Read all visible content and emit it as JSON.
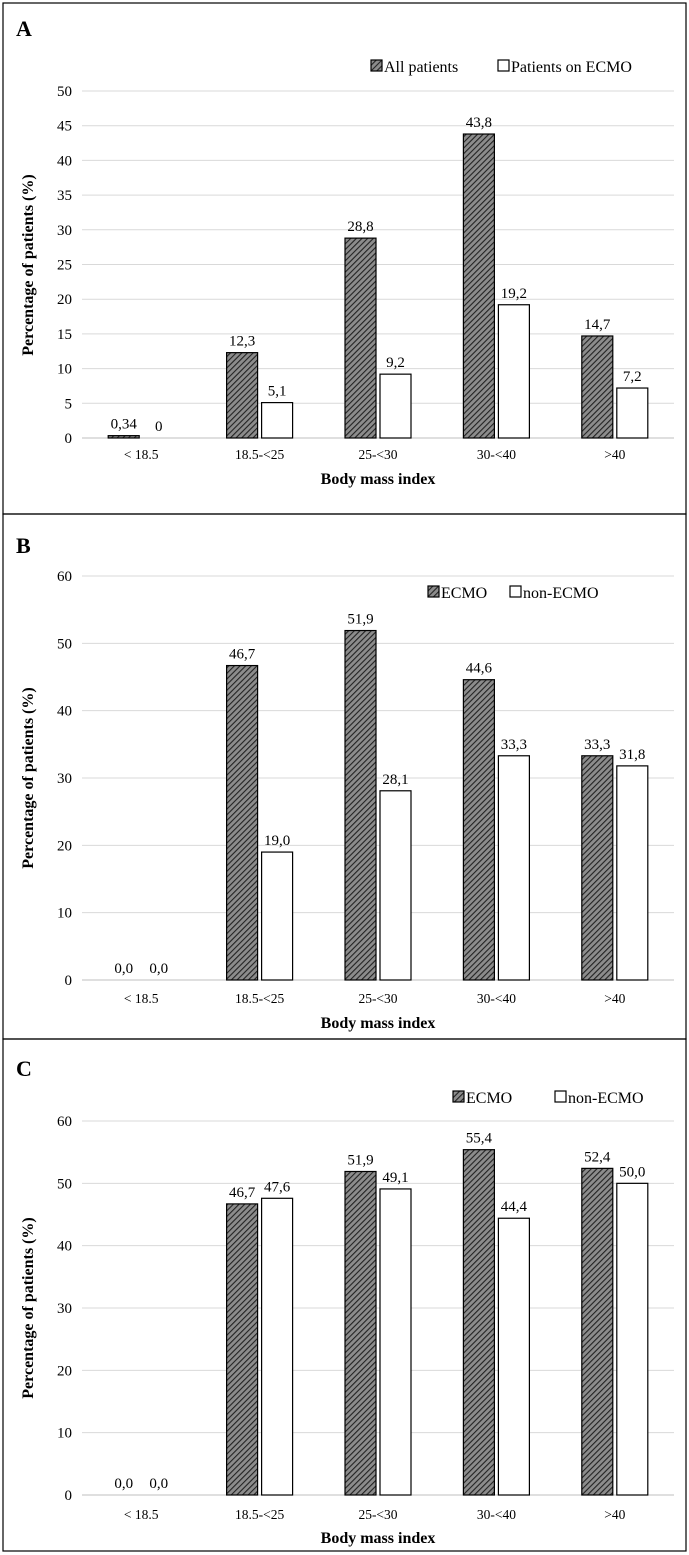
{
  "chart_data": [
    {
      "type": "bar",
      "panel_label": "A",
      "categories": [
        "< 18.5",
        "18.5-<25",
        "25-<30",
        "30-<40",
        ">40"
      ],
      "series": [
        {
          "name": "All patients",
          "values": [
            0.34,
            12.3,
            28.8,
            43.8,
            14.7
          ],
          "labels": [
            "0,34",
            "12,3",
            "28,8",
            "43,8",
            "14,7"
          ],
          "fill": "hatched"
        },
        {
          "name": "Patients on ECMO",
          "values": [
            0,
            5.1,
            9.2,
            19.2,
            7.2
          ],
          "labels": [
            "0",
            "5,1",
            "9,2",
            "19,2",
            "7,2"
          ],
          "fill": "white"
        }
      ],
      "xlabel": "Body mass index",
      "ylabel": "Percentage of patients (%)",
      "ylim": [
        0,
        50
      ],
      "yticks": [
        0,
        5,
        10,
        15,
        20,
        25,
        30,
        35,
        40,
        45,
        50
      ],
      "grid": true,
      "legend_position": "top-right"
    },
    {
      "type": "bar",
      "panel_label": "B",
      "categories": [
        "< 18.5",
        "18.5-<25",
        "25-<30",
        "30-<40",
        ">40"
      ],
      "series": [
        {
          "name": "ECMO",
          "values": [
            0,
            46.7,
            51.9,
            44.6,
            33.3
          ],
          "labels": [
            "0,0",
            "46,7",
            "51,9",
            "44,6",
            "33,3"
          ],
          "fill": "hatched"
        },
        {
          "name": "non-ECMO",
          "values": [
            0,
            19.0,
            28.1,
            33.3,
            31.8
          ],
          "labels": [
            "0,0",
            "19,0",
            "28,1",
            "33,3",
            "31,8"
          ],
          "fill": "white"
        }
      ],
      "xlabel": "Body mass index",
      "ylabel": "Percentage of patients (%)",
      "ylim": [
        0,
        60
      ],
      "yticks": [
        0,
        10,
        20,
        30,
        40,
        50,
        60
      ],
      "grid": true,
      "legend_position": "top-right"
    },
    {
      "type": "bar",
      "panel_label": "C",
      "categories": [
        "< 18.5",
        "18.5-<25",
        "25-<30",
        "30-<40",
        ">40"
      ],
      "series": [
        {
          "name": "ECMO",
          "values": [
            0,
            46.7,
            51.9,
            55.4,
            52.4
          ],
          "labels": [
            "0,0",
            "46,7",
            "51,9",
            "55,4",
            "52,4"
          ],
          "fill": "hatched"
        },
        {
          "name": "non-ECMO",
          "values": [
            0,
            47.6,
            49.1,
            44.4,
            50.0
          ],
          "labels": [
            "0,0",
            "47,6",
            "49,1",
            "44,4",
            "50,0"
          ],
          "fill": "white"
        }
      ],
      "xlabel": "Body mass index",
      "ylabel": "Percentage of patients (%)",
      "ylim": [
        0,
        60
      ],
      "yticks": [
        0,
        10,
        20,
        30,
        40,
        50,
        60
      ],
      "grid": true,
      "legend_position": "top-right"
    }
  ],
  "colors": {
    "hatch_background": "#8c8c8c",
    "hatch_line": "#222222",
    "open_bar": "#ffffff",
    "grid": "#d9d9d9",
    "border": "#000000"
  }
}
